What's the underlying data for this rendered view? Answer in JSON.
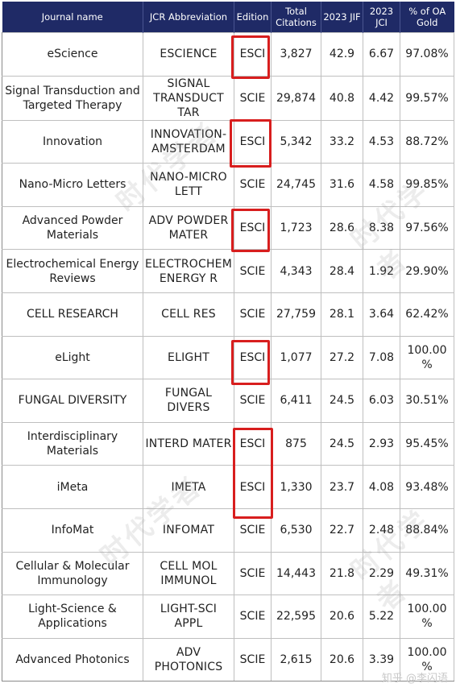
{
  "headers": {
    "journal_name": "Journal name",
    "jcr_abbreviation": "JCR Abbreviation",
    "edition": "Edition",
    "total_citations": "Total Citations",
    "jif_2023": "2023 JIF",
    "jci_2023": "2023 JCI",
    "oa_gold": "% of OA Gold"
  },
  "rows": [
    {
      "name": "eScience",
      "abbr": "ESCIENCE",
      "edition": "ESCI",
      "citations": "3,827",
      "jif": "42.9",
      "jci": "6.67",
      "oa": "97.08%"
    },
    {
      "name": "Signal Transduction and Targeted Therapy",
      "abbr": "SIGNAL TRANSDUCT TAR",
      "edition": "SCIE",
      "citations": "29,874",
      "jif": "40.8",
      "jci": "4.42",
      "oa": "99.57%"
    },
    {
      "name": "Innovation",
      "abbr": "INNOVATION-AMSTERDAM",
      "edition": "ESCI",
      "citations": "5,342",
      "jif": "33.2",
      "jci": "4.53",
      "oa": "88.72%"
    },
    {
      "name": "Nano-Micro Letters",
      "abbr": "NANO-MICRO LETT",
      "edition": "SCIE",
      "citations": "24,745",
      "jif": "31.6",
      "jci": "4.58",
      "oa": "99.85%"
    },
    {
      "name": "Advanced Powder Materials",
      "abbr": "ADV POWDER MATER",
      "edition": "ESCI",
      "citations": "1,723",
      "jif": "28.6",
      "jci": "8.38",
      "oa": "97.56%"
    },
    {
      "name": "Electrochemical Energy Reviews",
      "abbr": "ELECTROCHEM ENERGY R",
      "edition": "SCIE",
      "citations": "4,343",
      "jif": "28.4",
      "jci": "1.92",
      "oa": "29.90%"
    },
    {
      "name": "CELL RESEARCH",
      "abbr": "CELL RES",
      "edition": "SCIE",
      "citations": "27,759",
      "jif": "28.1",
      "jci": "3.64",
      "oa": "62.42%"
    },
    {
      "name": "eLight",
      "abbr": "ELIGHT",
      "edition": "ESCI",
      "citations": "1,077",
      "jif": "27.2",
      "jci": "7.08",
      "oa": "100.00%"
    },
    {
      "name": "FUNGAL DIVERSITY",
      "abbr": "FUNGAL DIVERS",
      "edition": "SCIE",
      "citations": "6,411",
      "jif": "24.5",
      "jci": "6.03",
      "oa": "30.51%"
    },
    {
      "name": "Interdisciplinary Materials",
      "abbr": "INTERD MATER",
      "edition": "ESCI",
      "citations": "875",
      "jif": "24.5",
      "jci": "2.93",
      "oa": "95.45%"
    },
    {
      "name": "iMeta",
      "abbr": "IMETA",
      "edition": "ESCI",
      "citations": "1,330",
      "jif": "23.7",
      "jci": "4.08",
      "oa": "93.48%"
    },
    {
      "name": "InfoMat",
      "abbr": "INFOMAT",
      "edition": "SCIE",
      "citations": "6,530",
      "jif": "22.7",
      "jci": "2.48",
      "oa": "88.84%"
    },
    {
      "name": "Cellular & Molecular Immunology",
      "abbr": "CELL MOL IMMUNOL",
      "edition": "SCIE",
      "citations": "14,443",
      "jif": "21.8",
      "jci": "2.29",
      "oa": "49.31%"
    },
    {
      "name": "Light-Science & Applications",
      "abbr": "LIGHT-SCI APPL",
      "edition": "SCIE",
      "citations": "22,595",
      "jif": "20.6",
      "jci": "5.22",
      "oa": "100.00%"
    },
    {
      "name": "Advanced Photonics",
      "abbr": "ADV PHOTONICS",
      "edition": "SCIE",
      "citations": "2,615",
      "jif": "20.6",
      "jci": "3.39",
      "oa": "100.00%"
    }
  ],
  "highlight_color": "#d81e1e",
  "header_color": "#1f2a66",
  "watermarks": [
    "时代学者",
    "时代学者",
    "时代学者",
    "时代学者"
  ],
  "footer_watermark": "知乎 @李闪语"
}
